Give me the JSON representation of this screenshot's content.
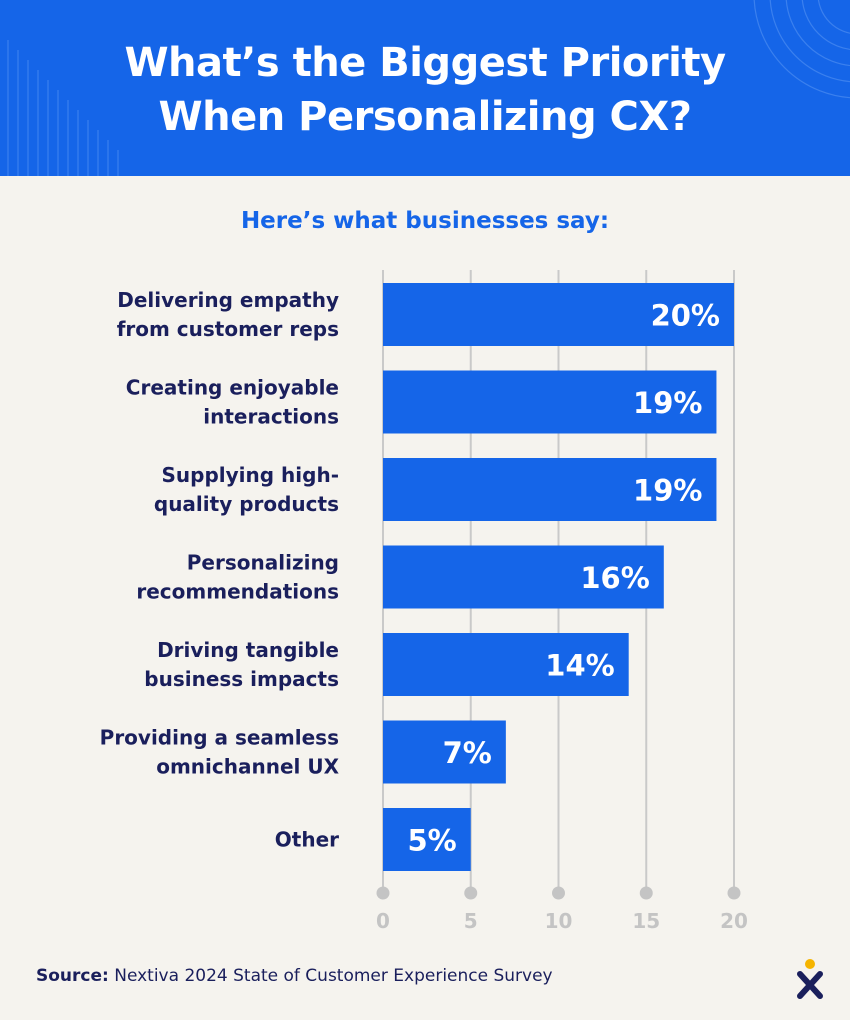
{
  "header": {
    "title_line1": "What’s the Biggest Priority",
    "title_line2": "When Personalizing CX?"
  },
  "subtitle": "Here’s what businesses say:",
  "chart_data": {
    "type": "bar",
    "orientation": "horizontal",
    "categories": [
      [
        "Delivering empathy",
        "from customer reps"
      ],
      [
        "Creating enjoyable",
        "interactions"
      ],
      [
        "Supplying high-",
        "quality products"
      ],
      [
        "Personalizing",
        "recommendations"
      ],
      [
        "Driving tangible",
        "business impacts"
      ],
      [
        "Providing a seamless",
        "omnichannel UX"
      ],
      [
        "Other"
      ]
    ],
    "values": [
      20,
      19,
      19,
      16,
      14,
      7,
      5
    ],
    "data_labels": [
      "20%",
      "19%",
      "19%",
      "16%",
      "14%",
      "7%",
      "5%"
    ],
    "xlim": [
      0,
      20
    ],
    "x_ticks": [
      0,
      5,
      10,
      15,
      20
    ],
    "x_tick_labels": [
      "0",
      "5",
      "10",
      "15",
      "20"
    ],
    "grid": true,
    "bar_color": "#1565e8",
    "label_color": "#1a1f5c",
    "grid_color": "#c9c9c9"
  },
  "footer": {
    "source_label": "Source:",
    "source_text": " Nextiva 2024 State of Customer Experience Survey"
  },
  "colors": {
    "header_bg": "#1565e8",
    "page_bg": "#f5f3ee",
    "logo_dot": "#f5b400",
    "logo_x": "#1a1f5c"
  }
}
